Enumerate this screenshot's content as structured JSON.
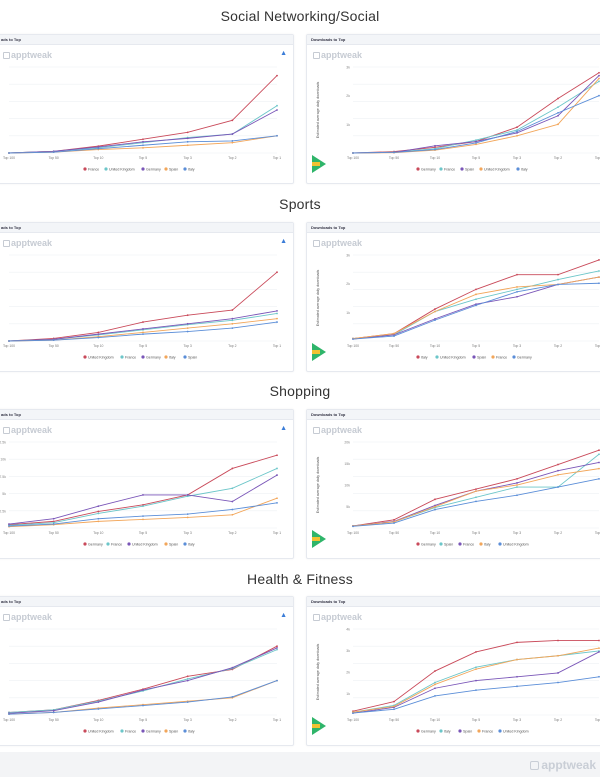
{
  "sections": [
    {
      "title": "Social Networking/Social"
    },
    {
      "title": "Sports"
    },
    {
      "title": "Shopping"
    },
    {
      "title": "Health & Fitness"
    }
  ],
  "card_heading": "Downloads to Top",
  "card_heading_left": "ads to Top",
  "brand": "apptweak",
  "ylabel": "Estimated average daily downloads",
  "colors": {
    "red": "#c94a5a",
    "teal": "#6cc6c9",
    "purple": "#7a56b8",
    "orange": "#f2a65a",
    "blue": "#5b8ed8"
  },
  "chart_data": [
    {
      "type": "line",
      "section": "Social Networking/Social",
      "categories": [
        "Top 100",
        "Top 50",
        "Top 10",
        "Top 5",
        "Top 3",
        "Top 2",
        "Top 1"
      ],
      "series": [
        {
          "name": "France",
          "color": "red",
          "values": [
            0,
            2,
            8,
            16,
            24,
            38,
            90
          ]
        },
        {
          "name": "United Kingdom",
          "color": "teal",
          "values": [
            0,
            2,
            6,
            12,
            18,
            22,
            55
          ]
        },
        {
          "name": "Germany",
          "color": "purple",
          "values": [
            0,
            2,
            7,
            13,
            17,
            22,
            50
          ]
        },
        {
          "name": "Spain",
          "color": "orange",
          "values": [
            0,
            1,
            4,
            6,
            9,
            12,
            20
          ]
        },
        {
          "name": "Italy",
          "color": "blue",
          "values": [
            0,
            1,
            5,
            9,
            13,
            14,
            20
          ]
        }
      ],
      "ylim": [
        0,
        100
      ]
    },
    {
      "type": "line",
      "section": "Social Networking/Social",
      "categories": [
        "Top 100",
        "Top 50",
        "Top 10",
        "Top 5",
        "Top 3",
        "Top 2",
        "Top 1"
      ],
      "yticks": [
        "",
        "1k",
        "2k",
        "3k"
      ],
      "series": [
        {
          "name": "Germany",
          "color": "red",
          "values": [
            0,
            50,
            200,
            400,
            900,
            1900,
            2800
          ]
        },
        {
          "name": "France",
          "color": "teal",
          "values": [
            0,
            30,
            150,
            450,
            800,
            1600,
            2500
          ]
        },
        {
          "name": "Spain",
          "color": "purple",
          "values": [
            0,
            20,
            250,
            400,
            700,
            1300,
            2700
          ]
        },
        {
          "name": "United Kingdom",
          "color": "orange",
          "values": [
            0,
            10,
            100,
            300,
            600,
            1000,
            2600
          ]
        },
        {
          "name": "Italy",
          "color": "blue",
          "values": [
            0,
            20,
            120,
            350,
            750,
            1400,
            2000
          ]
        }
      ],
      "ylim": [
        0,
        3000
      ]
    },
    {
      "type": "line",
      "section": "Sports",
      "categories": [
        "Top 100",
        "Top 50",
        "Top 10",
        "Top 5",
        "Top 3",
        "Top 2",
        "Top 1"
      ],
      "series": [
        {
          "name": "United Kingdom",
          "color": "red",
          "values": [
            0,
            3,
            10,
            22,
            30,
            36,
            80
          ]
        },
        {
          "name": "France",
          "color": "teal",
          "values": [
            0,
            2,
            7,
            13,
            19,
            24,
            32
          ]
        },
        {
          "name": "Germany",
          "color": "purple",
          "values": [
            0,
            2,
            8,
            14,
            20,
            26,
            35
          ]
        },
        {
          "name": "Italy",
          "color": "orange",
          "values": [
            0,
            1,
            5,
            10,
            15,
            20,
            26
          ]
        },
        {
          "name": "Spain",
          "color": "blue",
          "values": [
            0,
            1,
            4,
            8,
            11,
            15,
            22
          ]
        }
      ],
      "ylim": [
        0,
        100
      ]
    },
    {
      "type": "line",
      "section": "Sports",
      "categories": [
        "Top 100",
        "Top 50",
        "Top 10",
        "Top 5",
        "Top 3",
        "Top 2",
        "Top 1"
      ],
      "yticks": [
        "",
        "1k",
        "2k",
        "3k"
      ],
      "series": [
        {
          "name": "Italy",
          "color": "red",
          "values": [
            100,
            300,
            1300,
            2100,
            2700,
            2700,
            3300
          ]
        },
        {
          "name": "United Kingdom",
          "color": "teal",
          "values": [
            100,
            250,
            1200,
            1700,
            2100,
            2500,
            2850
          ]
        },
        {
          "name": "Spain",
          "color": "purple",
          "values": [
            80,
            250,
            900,
            1500,
            1800,
            2300,
            2600
          ]
        },
        {
          "name": "France",
          "color": "orange",
          "values": [
            100,
            300,
            1200,
            1900,
            2200,
            2300,
            2600
          ]
        },
        {
          "name": "Germany",
          "color": "blue",
          "values": [
            80,
            200,
            850,
            1450,
            2000,
            2300,
            2350
          ]
        }
      ],
      "ylim": [
        0,
        3500
      ]
    },
    {
      "type": "line",
      "section": "Shopping",
      "categories": [
        "Top 100",
        "Top 50",
        "Top 10",
        "Top 5",
        "Top 3",
        "Top 2",
        "Top 1"
      ],
      "yticks": [
        "",
        "2.5k",
        "5k",
        "7.5k",
        "10k",
        "12.5k"
      ],
      "series": [
        {
          "name": "Germany",
          "color": "red",
          "values": [
            500,
            1000,
            2500,
            3500,
            5000,
            9000,
            11000
          ]
        },
        {
          "name": "France",
          "color": "teal",
          "values": [
            400,
            800,
            2200,
            3300,
            4800,
            6000,
            9000
          ]
        },
        {
          "name": "United Kingdom",
          "color": "purple",
          "values": [
            600,
            1400,
            3300,
            5000,
            5000,
            4000,
            8000
          ]
        },
        {
          "name": "Spain",
          "color": "orange",
          "values": [
            200,
            500,
            1000,
            1300,
            1600,
            2000,
            4500
          ]
        },
        {
          "name": "Italy",
          "color": "blue",
          "values": [
            300,
            600,
            1400,
            1800,
            2100,
            2800,
            3800
          ]
        }
      ],
      "ylim": [
        0,
        13000
      ]
    },
    {
      "type": "line",
      "section": "Shopping",
      "categories": [
        "Top 100",
        "Top 50",
        "Top 10",
        "Top 5",
        "Top 3",
        "Top 2",
        "Top 1"
      ],
      "yticks": [
        "",
        "5k",
        "10k",
        "15k",
        "20k"
      ],
      "series": [
        {
          "name": "Germany",
          "color": "red",
          "values": [
            500,
            2000,
            7000,
            9500,
            12000,
            15500,
            19000
          ]
        },
        {
          "name": "Spain",
          "color": "teal",
          "values": [
            500,
            1500,
            5000,
            7500,
            10000,
            10000,
            18000
          ]
        },
        {
          "name": "France",
          "color": "purple",
          "values": [
            500,
            1600,
            5500,
            9000,
            11000,
            14000,
            16000
          ]
        },
        {
          "name": "Italy",
          "color": "orange",
          "values": [
            500,
            1500,
            5200,
            9000,
            10500,
            13000,
            14500
          ]
        },
        {
          "name": "United Kingdom",
          "color": "blue",
          "values": [
            400,
            1200,
            4500,
            6500,
            8000,
            10000,
            12000
          ]
        }
      ],
      "ylim": [
        0,
        21000
      ]
    },
    {
      "type": "line",
      "section": "Health & Fitness",
      "categories": [
        "Top 100",
        "Top 50",
        "Top 10",
        "Top 5",
        "Top 3",
        "Top 2",
        "Top 1"
      ],
      "series": [
        {
          "name": "United Kingdom",
          "color": "red",
          "values": [
            3,
            6,
            17,
            30,
            45,
            53,
            80
          ]
        },
        {
          "name": "France",
          "color": "teal",
          "values": [
            3,
            6,
            16,
            28,
            42,
            54,
            76
          ]
        },
        {
          "name": "Germany",
          "color": "purple",
          "values": [
            2,
            5,
            15,
            29,
            40,
            55,
            78
          ]
        },
        {
          "name": "Spain",
          "color": "orange",
          "values": [
            1,
            3,
            8,
            12,
            16,
            20,
            40
          ]
        },
        {
          "name": "Italy",
          "color": "blue",
          "values": [
            1,
            3,
            7,
            11,
            15,
            21,
            40
          ]
        }
      ],
      "ylim": [
        0,
        100
      ]
    },
    {
      "type": "line",
      "section": "Health & Fitness",
      "categories": [
        "Top 100",
        "Top 50",
        "Top 10",
        "Top 5",
        "Top 3",
        "Top 2",
        "Top 1"
      ],
      "yticks": [
        "",
        "1k",
        "2k",
        "3k",
        "4k"
      ],
      "series": [
        {
          "name": "Germany",
          "color": "red",
          "values": [
            200,
            700,
            2300,
            3300,
            3800,
            3900,
            3900
          ]
        },
        {
          "name": "Italy",
          "color": "teal",
          "values": [
            150,
            500,
            1700,
            2500,
            2900,
            3100,
            3350
          ]
        },
        {
          "name": "Spain",
          "color": "purple",
          "values": [
            100,
            400,
            1400,
            1800,
            2000,
            2200,
            3300
          ]
        },
        {
          "name": "France",
          "color": "orange",
          "values": [
            150,
            450,
            1600,
            2400,
            2900,
            3100,
            3500
          ]
        },
        {
          "name": "United Kingdom",
          "color": "blue",
          "values": [
            100,
            300,
            1000,
            1300,
            1500,
            1700,
            2000
          ]
        }
      ],
      "ylim": [
        0,
        4500
      ]
    }
  ],
  "footer_brand": "apptweak"
}
